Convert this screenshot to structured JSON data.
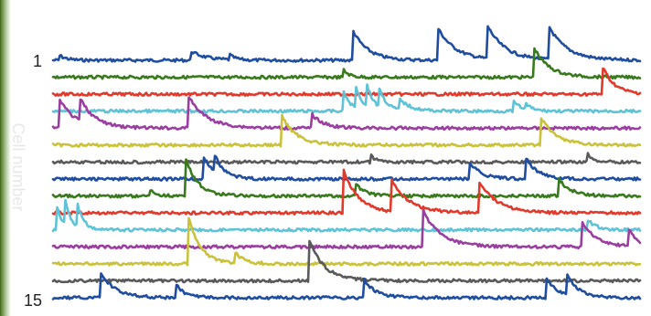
{
  "chart_data": {
    "type": "line",
    "ylabel": "Cell number",
    "tick_labels": [
      "1",
      "15"
    ],
    "x_range": [
      0,
      100
    ],
    "colors": {
      "blue": "#1f4ea0",
      "green": "#3a7a1e",
      "red": "#e03a2c",
      "cyan": "#5ec3d6",
      "purple": "#9a3fa0",
      "yellow": "#c9c23a",
      "gray": "#5a5a5a",
      "background_left": "#4f7a22"
    },
    "series": [
      {
        "cell": 1,
        "color": "blue",
        "events": [
          {
            "t": 1,
            "a": 0.3,
            "tau": 1.2
          },
          {
            "t": 23.5,
            "a": 0.5,
            "tau": 2.5
          },
          {
            "t": 30,
            "a": 0.3,
            "tau": 1
          },
          {
            "t": 51,
            "a": 1.7,
            "tau": 2.5
          },
          {
            "t": 65.5,
            "a": 1.8,
            "tau": 3
          },
          {
            "t": 74,
            "a": 1.8,
            "tau": 3
          },
          {
            "t": 84.5,
            "a": 1.8,
            "tau": 3
          }
        ]
      },
      {
        "cell": 2,
        "color": "green",
        "events": [
          {
            "t": 49.5,
            "a": 0.4,
            "tau": 1
          },
          {
            "t": 82,
            "a": 1.6,
            "tau": 2.5
          }
        ]
      },
      {
        "cell": 3,
        "color": "red",
        "events": [
          {
            "t": 93.5,
            "a": 1.6,
            "tau": 2
          }
        ]
      },
      {
        "cell": 4,
        "color": "cyan",
        "events": [
          {
            "t": 49.5,
            "a": 1.1,
            "tau": 1.2
          },
          {
            "t": 51.5,
            "a": 1.3,
            "tau": 1.2
          },
          {
            "t": 53.5,
            "a": 1.2,
            "tau": 1.2
          },
          {
            "t": 55.5,
            "a": 1.1,
            "tau": 1.3
          },
          {
            "t": 59,
            "a": 0.6,
            "tau": 2
          },
          {
            "t": 78.5,
            "a": 0.5,
            "tau": 1.5
          },
          {
            "t": 80.5,
            "a": 0.3,
            "tau": 1
          }
        ]
      },
      {
        "cell": 5,
        "color": "purple",
        "events": [
          {
            "t": 1,
            "a": 1.7,
            "tau": 2.5
          },
          {
            "t": 4.5,
            "a": 1.3,
            "tau": 2.5
          },
          {
            "t": 23,
            "a": 1.8,
            "tau": 3
          },
          {
            "t": 44,
            "a": 0.8,
            "tau": 2
          }
        ]
      },
      {
        "cell": 6,
        "color": "yellow",
        "events": [
          {
            "t": 39,
            "a": 1.6,
            "tau": 2.5
          },
          {
            "t": 83,
            "a": 1.6,
            "tau": 2.5
          }
        ]
      },
      {
        "cell": 7,
        "color": "gray",
        "events": [
          {
            "t": 54,
            "a": 0.4,
            "tau": 1
          },
          {
            "t": 91,
            "a": 0.5,
            "tau": 1
          }
        ]
      },
      {
        "cell": 8,
        "color": "blue",
        "events": [
          {
            "t": 25.5,
            "a": 1.3,
            "tau": 2
          },
          {
            "t": 27.5,
            "a": 0.9,
            "tau": 1.5
          },
          {
            "t": 71,
            "a": 0.9,
            "tau": 2
          },
          {
            "t": 80.5,
            "a": 1.2,
            "tau": 2
          }
        ]
      },
      {
        "cell": 9,
        "color": "green",
        "events": [
          {
            "t": 16.5,
            "a": 0.4,
            "tau": 1
          },
          {
            "t": 22.5,
            "a": 2.2,
            "tau": 2
          },
          {
            "t": 51.5,
            "a": 0.7,
            "tau": 1.5
          },
          {
            "t": 86,
            "a": 1,
            "tau": 2
          }
        ]
      },
      {
        "cell": 10,
        "color": "red",
        "events": [
          {
            "t": 49.5,
            "a": 2.4,
            "tau": 2.5
          },
          {
            "t": 57.5,
            "a": 1.8,
            "tau": 3
          },
          {
            "t": 72.5,
            "a": 1.8,
            "tau": 3
          }
        ]
      },
      {
        "cell": 11,
        "color": "cyan",
        "events": [
          {
            "t": 0.5,
            "a": 1.5,
            "tau": 1
          },
          {
            "t": 2,
            "a": 1.5,
            "tau": 1
          },
          {
            "t": 4,
            "a": 1.4,
            "tau": 1.1
          },
          {
            "t": 91,
            "a": 0.6,
            "tau": 1.5
          }
        ]
      },
      {
        "cell": 12,
        "color": "purple",
        "events": [
          {
            "t": 63,
            "a": 2,
            "tau": 3
          },
          {
            "t": 90,
            "a": 1.4,
            "tau": 2.5
          },
          {
            "t": 98,
            "a": 1,
            "tau": 1.5
          }
        ]
      },
      {
        "cell": 13,
        "color": "yellow",
        "events": [
          {
            "t": 23,
            "a": 2.7,
            "tau": 2
          },
          {
            "t": 31,
            "a": 0.6,
            "tau": 1.5
          }
        ]
      },
      {
        "cell": 14,
        "color": "gray",
        "events": [
          {
            "t": 43.5,
            "a": 2.4,
            "tau": 2.5
          }
        ]
      },
      {
        "cell": 15,
        "color": "blue",
        "events": [
          {
            "t": 8,
            "a": 1.4,
            "tau": 2.5
          },
          {
            "t": 21,
            "a": 0.7,
            "tau": 1.5
          },
          {
            "t": 53,
            "a": 1,
            "tau": 2
          },
          {
            "t": 84,
            "a": 1.1,
            "tau": 2
          },
          {
            "t": 87.5,
            "a": 1.1,
            "tau": 2
          }
        ]
      }
    ]
  }
}
